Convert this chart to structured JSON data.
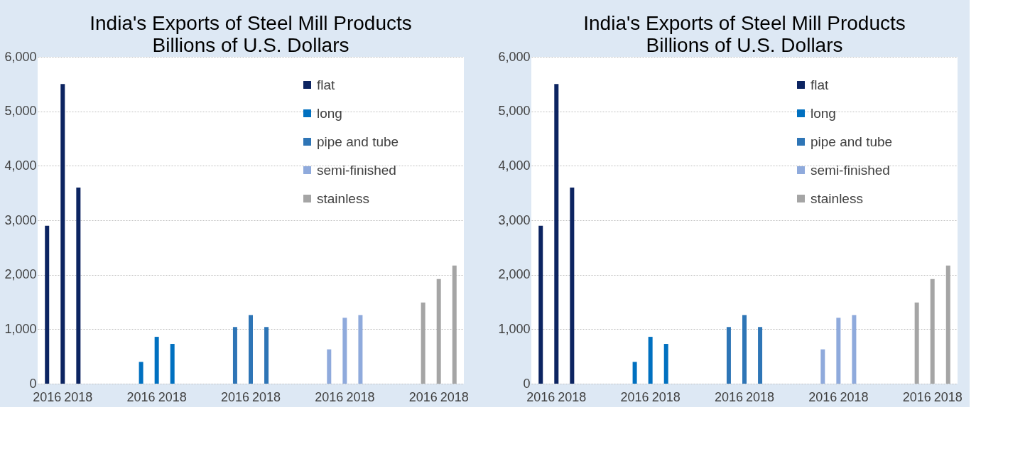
{
  "chart_data": [
    {
      "type": "bar",
      "title": "India's Exports of Steel Mill Products",
      "subtitle": "Billions of U.S. Dollars",
      "categories": [
        "2016",
        null,
        "2018",
        null,
        null,
        null,
        "2016",
        null,
        "2018",
        null,
        null,
        null,
        "2016",
        null,
        "2018",
        null,
        null,
        null,
        "2016",
        null,
        "2018",
        null,
        null,
        null,
        "2016",
        null,
        "2018"
      ],
      "series": [
        {
          "name": "flat",
          "color": "#0c2461",
          "values": [
            2900,
            5500,
            3600,
            null,
            null,
            null,
            null,
            null,
            null,
            null,
            null,
            null,
            null,
            null,
            null,
            null,
            null,
            null,
            null,
            null,
            null,
            null,
            null,
            null,
            null,
            null,
            null
          ]
        },
        {
          "name": "long",
          "color": "#0070c0",
          "values": [
            null,
            null,
            null,
            null,
            null,
            null,
            400,
            860,
            730,
            null,
            null,
            null,
            null,
            null,
            null,
            null,
            null,
            null,
            null,
            null,
            null,
            null,
            null,
            null,
            null,
            null,
            null
          ]
        },
        {
          "name": "pipe and tube",
          "color": "#2e75b6",
          "values": [
            null,
            null,
            null,
            null,
            null,
            null,
            null,
            null,
            null,
            null,
            null,
            null,
            1040,
            1260,
            1040,
            null,
            null,
            null,
            null,
            null,
            null,
            null,
            null,
            null,
            null,
            null,
            null
          ]
        },
        {
          "name": "semi-finished",
          "color": "#8faadc",
          "values": [
            null,
            null,
            null,
            null,
            null,
            null,
            null,
            null,
            null,
            null,
            null,
            null,
            null,
            null,
            null,
            null,
            null,
            null,
            630,
            1210,
            1260,
            null,
            null,
            null,
            null,
            null,
            null
          ]
        },
        {
          "name": "stainless",
          "color": "#a5a5a5",
          "values": [
            null,
            null,
            null,
            null,
            null,
            null,
            null,
            null,
            null,
            null,
            null,
            null,
            null,
            null,
            null,
            null,
            null,
            null,
            null,
            null,
            null,
            null,
            null,
            null,
            1490,
            1920,
            2170
          ]
        }
      ],
      "ylim": [
        0,
        6000
      ],
      "yticks": [
        0,
        {
          "value": 1000,
          "label": "1,000"
        },
        {
          "value": 2000,
          "label": "2,000"
        },
        {
          "value": 3000,
          "label": "3,000"
        },
        {
          "value": 4000,
          "label": "4,000"
        },
        {
          "value": 5000,
          "label": "5,000"
        },
        {
          "value": 6000,
          "label": "6,000"
        }
      ],
      "grid": "y",
      "legend": "top right"
    },
    {
      "type": "bar",
      "title": "India's Exports of Steel Mill Products",
      "subtitle": "Billions of U.S. Dollars",
      "categories": [
        "2016",
        null,
        "2018",
        null,
        null,
        null,
        "2016",
        null,
        "2018",
        null,
        null,
        null,
        "2016",
        null,
        "2018",
        null,
        null,
        null,
        "2016",
        null,
        "2018",
        null,
        null,
        null,
        "2016",
        null,
        "2018"
      ],
      "series": [
        {
          "name": "flat",
          "color": "#0c2461",
          "values": [
            2900,
            5500,
            3600,
            null,
            null,
            null,
            null,
            null,
            null,
            null,
            null,
            null,
            null,
            null,
            null,
            null,
            null,
            null,
            null,
            null,
            null,
            null,
            null,
            null,
            null,
            null,
            null
          ]
        },
        {
          "name": "long",
          "color": "#0070c0",
          "values": [
            null,
            null,
            null,
            null,
            null,
            null,
            400,
            860,
            730,
            null,
            null,
            null,
            null,
            null,
            null,
            null,
            null,
            null,
            null,
            null,
            null,
            null,
            null,
            null,
            null,
            null,
            null
          ]
        },
        {
          "name": "pipe and tube",
          "color": "#2e75b6",
          "values": [
            null,
            null,
            null,
            null,
            null,
            null,
            null,
            null,
            null,
            null,
            null,
            null,
            1040,
            1260,
            1040,
            null,
            null,
            null,
            null,
            null,
            null,
            null,
            null,
            null,
            null,
            null,
            null
          ]
        },
        {
          "name": "semi-finished",
          "color": "#8faadc",
          "values": [
            null,
            null,
            null,
            null,
            null,
            null,
            null,
            null,
            null,
            null,
            null,
            null,
            null,
            null,
            null,
            null,
            null,
            null,
            630,
            1210,
            1260,
            null,
            null,
            null,
            null,
            null,
            null
          ]
        },
        {
          "name": "stainless",
          "color": "#a5a5a5",
          "values": [
            null,
            null,
            null,
            null,
            null,
            null,
            null,
            null,
            null,
            null,
            null,
            null,
            null,
            null,
            null,
            null,
            null,
            null,
            null,
            null,
            null,
            null,
            null,
            null,
            1490,
            1920,
            2170
          ]
        }
      ],
      "ylim": [
        0,
        6000
      ],
      "yticks": [
        0,
        {
          "value": 1000,
          "label": "1,000"
        },
        {
          "value": 2000,
          "label": "2,000"
        },
        {
          "value": 3000,
          "label": "3,000"
        },
        {
          "value": 4000,
          "label": "4,000"
        },
        {
          "value": 5000,
          "label": "5,000"
        },
        {
          "value": 6000,
          "label": "6,000"
        }
      ],
      "grid": "y",
      "legend": "top right"
    }
  ]
}
